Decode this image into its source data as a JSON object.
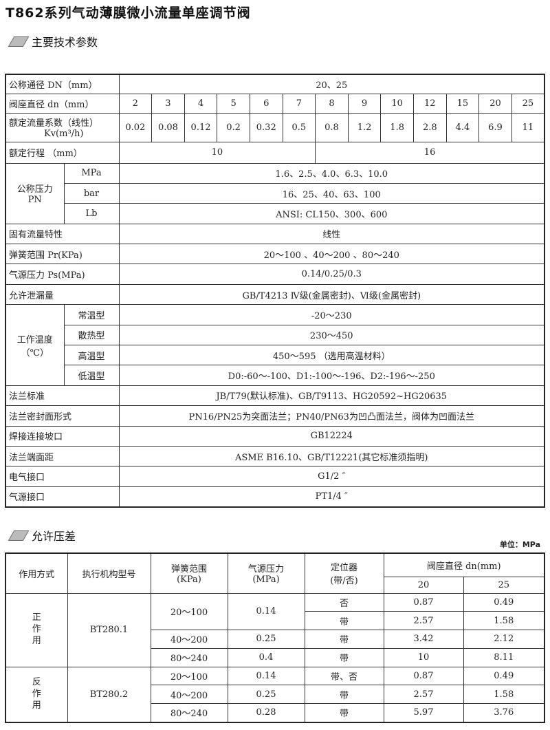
{
  "title": "T862系列气动薄膜微小流量单座调节阀",
  "section1": "主要技术参数",
  "spec": {
    "dn_label": "公称通径  DN（mm）",
    "dn_value": "20、25",
    "seat_label": "阀座直径  dn（mm）",
    "seat": [
      "2",
      "3",
      "4",
      "5",
      "6",
      "7",
      "8",
      "9",
      "10",
      "12",
      "15",
      "20",
      "25"
    ],
    "kv_label1": "额定流量系数（线性）",
    "kv_label2": "Kv(m³/h)",
    "kv": [
      "0.02",
      "0.08",
      "0.12",
      "0.2",
      "0.32",
      "0.5",
      "0.8",
      "1.2",
      "1.8",
      "2.8",
      "4.4",
      "6.9",
      "11"
    ],
    "stroke_label": "额定行程 （mm）",
    "stroke": [
      "10",
      "16"
    ],
    "pn_label1": "公称压力",
    "pn_label2": "PN",
    "pn": [
      {
        "unit": "MPa",
        "value": "1.6、2.5、4.0、6.3、10.0"
      },
      {
        "unit": "bar",
        "value": "16、25、40、63、100"
      },
      {
        "unit": "Lb",
        "value": "ANSI: CL150、300、600"
      }
    ],
    "rows1": [
      {
        "label": "固有流量特性",
        "value": "线性"
      },
      {
        "label": "弹簧范围  Pr(KPa)",
        "value": "20～100 、40～200 、80～240"
      },
      {
        "label": "气源压力  Ps(MPa)",
        "value": "0.14/0.25/0.3"
      },
      {
        "label": "允许泄漏量",
        "value": "GB/T4213 Ⅳ级(金属密封)、Ⅵ级(金属密封)"
      }
    ],
    "temp_label1": "工作温度",
    "temp_label2": "（℃）",
    "temp": [
      {
        "type": "常温型",
        "value": "-20～230"
      },
      {
        "type": "散热型",
        "value": "230～450"
      },
      {
        "type": "高温型",
        "value": "450～595 （选用高温材料）"
      },
      {
        "type": "低温型",
        "value": "D0:-60～-100、D1:-100～-196、D2:-196～-250"
      }
    ],
    "rows2": [
      {
        "label": "法兰标准",
        "value": "JB/T79(默认标准)、GB/T9113、HG20592~HG20635"
      },
      {
        "label": "法兰密封面形式",
        "value": "PN16/PN25为突面法兰；PN40/PN63为凹凸面法兰，阀体为凹面法兰"
      },
      {
        "label": "焊接连接坡口",
        "value": "GB12224"
      },
      {
        "label": "法兰端面距",
        "value": "ASME B16.10、GB/T12221(其它标准须指明)"
      },
      {
        "label": "电气接口",
        "value": "G1/2 ″"
      },
      {
        "label": "气源接口",
        "value": "PT1/4 ″"
      }
    ]
  },
  "section2": "允许压差",
  "unit": "单位：MPa",
  "dp": {
    "headers": {
      "mode": "作用方式",
      "actuator": "执行机构型号",
      "spring1": "弹簧范围",
      "spring2": "(KPa)",
      "air1": "气源压力",
      "air2": "(MPa)",
      "pos1": "定位器",
      "pos2": "(带/否)",
      "seat": "阀座直径 dn(mm)",
      "d1": "20",
      "d2": "25"
    },
    "groups": [
      {
        "mode": "正\n作\n用",
        "actuator": "BT280.1",
        "rows": [
          {
            "spring": "20～100",
            "air": "0.14",
            "pos": "否",
            "v20": "0.87",
            "v25": "0.49"
          },
          {
            "spring": "",
            "air": "",
            "pos": "带",
            "v20": "2.57",
            "v25": "1.58"
          },
          {
            "spring": "40～200",
            "air": "0.25",
            "pos": "带",
            "v20": "3.42",
            "v25": "2.12"
          },
          {
            "spring": "80～240",
            "air": "0.4",
            "pos": "带",
            "v20": "10",
            "v25": "8.11"
          }
        ]
      },
      {
        "mode": "反\n作\n用",
        "actuator": "BT280.2",
        "rows": [
          {
            "spring": "20～100",
            "air": "0.14",
            "pos": "带、否",
            "v20": "0.87",
            "v25": "0.49"
          },
          {
            "spring": "40～200",
            "air": "0.25",
            "pos": "带",
            "v20": "2.57",
            "v25": "1.58"
          },
          {
            "spring": "80～240",
            "air": "0.28",
            "pos": "带",
            "v20": "5.97",
            "v25": "3.76"
          }
        ]
      }
    ]
  }
}
